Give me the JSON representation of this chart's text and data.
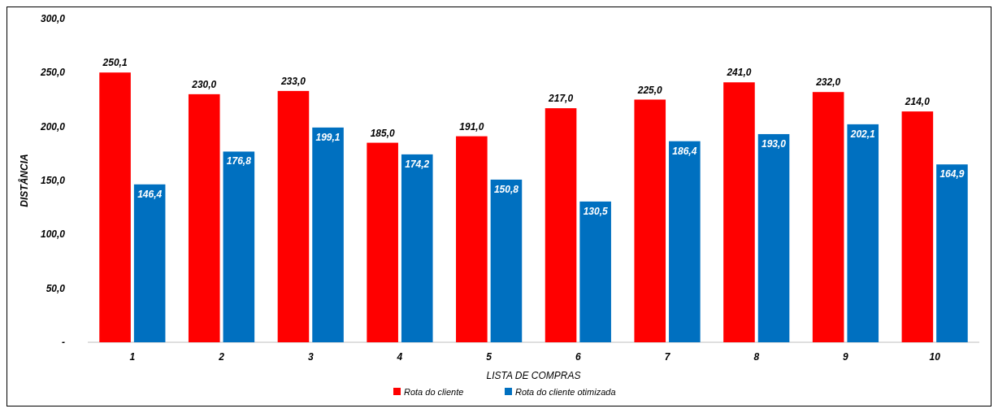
{
  "chart_data": {
    "type": "bar",
    "xlabel": "LISTA DE COMPRAS",
    "ylabel": "DISTÂNCIA",
    "categories": [
      "1",
      "2",
      "3",
      "4",
      "5",
      "6",
      "7",
      "8",
      "9",
      "10"
    ],
    "series": [
      {
        "name": "Rota do cliente",
        "color": "#ff0000",
        "values": [
          250.1,
          230.0,
          233.0,
          185.0,
          191.0,
          217.0,
          225.0,
          241.0,
          232.0,
          214.0
        ],
        "value_labels": [
          "250,1",
          "230,0",
          "233,0",
          "185,0",
          "191,0",
          "217,0",
          "225,0",
          "241,0",
          "232,0",
          "214,0"
        ]
      },
      {
        "name": "Rota do cliente otimizada",
        "color": "#0070c0",
        "values": [
          146.4,
          176.8,
          199.1,
          174.2,
          150.8,
          130.5,
          186.4,
          193.0,
          202.1,
          164.9
        ],
        "value_labels": [
          "146,4",
          "176,8",
          "199,1",
          "174,2",
          "150,8",
          "130,5",
          "186,4",
          "193,0",
          "202,1",
          "164,9"
        ]
      }
    ],
    "ylim": [
      0,
      300
    ],
    "yticks": [
      {
        "value": 0,
        "label": "-"
      },
      {
        "value": 50,
        "label": "50,0"
      },
      {
        "value": 100,
        "label": "100,0"
      },
      {
        "value": 150,
        "label": "150,0"
      },
      {
        "value": 200,
        "label": "200,0"
      },
      {
        "value": 250,
        "label": "250,0"
      },
      {
        "value": 300,
        "label": "300,0"
      }
    ],
    "grid": false,
    "legend": "bottom"
  }
}
